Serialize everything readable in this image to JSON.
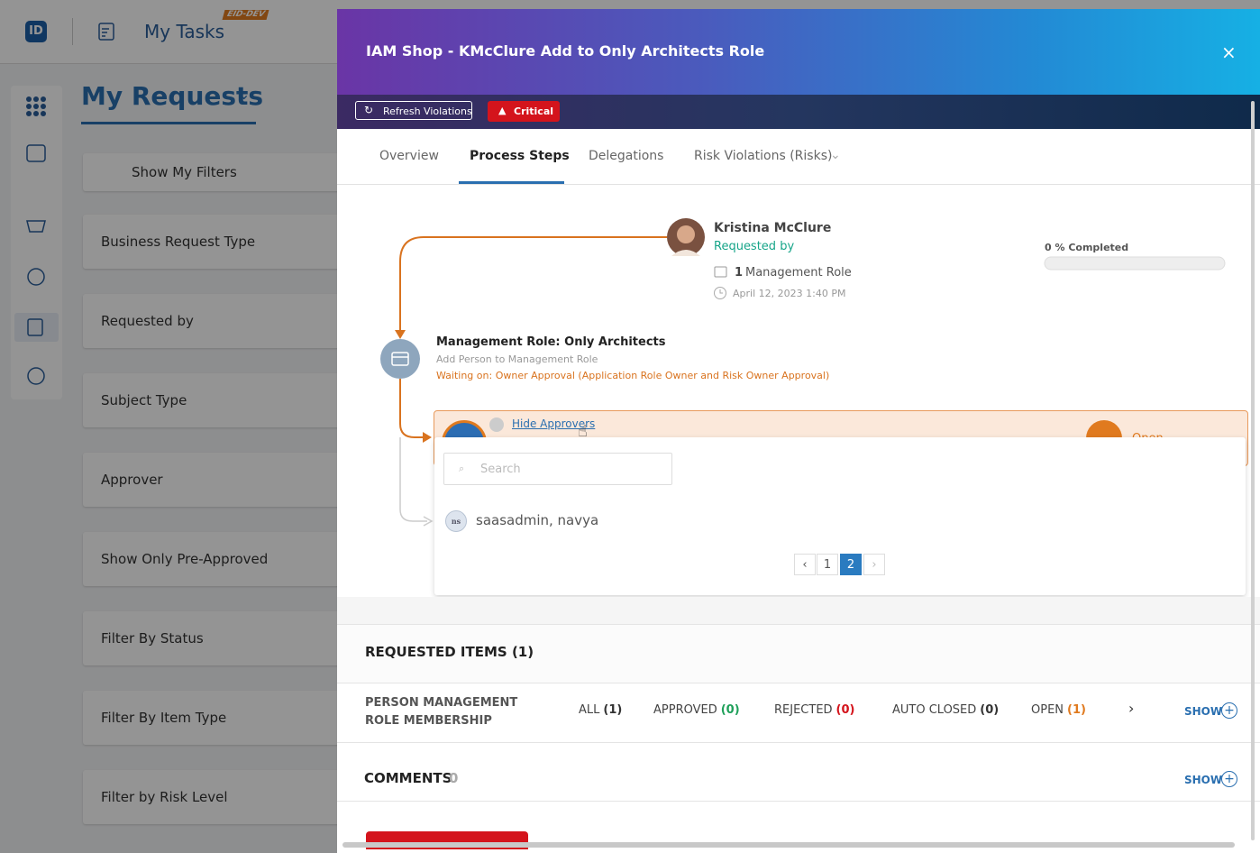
{
  "app": {
    "logo": "ID",
    "title": "My Tasks",
    "env": "EID-DEV"
  },
  "sidebar": {
    "page_title": "My Requests",
    "filters": [
      "Show My Filters",
      "Business Request Type",
      "Requested by",
      "Subject Type",
      "Approver",
      "Show Only Pre-Approved",
      "Filter By Status",
      "Filter By Item Type",
      "Filter by Risk Level"
    ]
  },
  "modal": {
    "title": "IAM Shop - KMcClure Add to Only Architects Role",
    "refresh": "Refresh Violations",
    "severity": "Critical",
    "tabs": [
      "Overview",
      "Process Steps",
      "Delegations",
      "Risk Violations (Risks)"
    ]
  },
  "requester": {
    "name": "Kristina McClure",
    "label": "Requested by",
    "count": "1",
    "item_type": "Management Role",
    "date": "April 12, 2023 1:40 PM"
  },
  "progress": {
    "label": "0 % Completed"
  },
  "step": {
    "title": "Management Role: Only Architects",
    "subtitle": "Add Person to Management Role",
    "waiting": "Waiting on: Owner Approval (Application Role Owner and Risk Owner Approval)"
  },
  "approvers": {
    "toggle": "Hide Approvers",
    "status": "Open",
    "search_placeholder": "Search",
    "list": [
      {
        "initials": "ns",
        "name": "saasadmin, navya"
      }
    ],
    "pages": [
      "1",
      "2"
    ]
  },
  "requested_items": {
    "heading": "REQUESTED ITEMS (1)",
    "group": "PERSON MANAGEMENT ROLE MEMBERSHIP",
    "filters": [
      {
        "label": "ALL",
        "count": "(1)"
      },
      {
        "label": "APPROVED",
        "count": "(0)"
      },
      {
        "label": "REJECTED",
        "count": "(0)"
      },
      {
        "label": "AUTO CLOSED",
        "count": "(0)"
      },
      {
        "label": "OPEN",
        "count": "(1)"
      }
    ],
    "show": "SHOW"
  },
  "comments": {
    "heading": "COMMENTS",
    "count": "0",
    "show": "SHOW"
  }
}
